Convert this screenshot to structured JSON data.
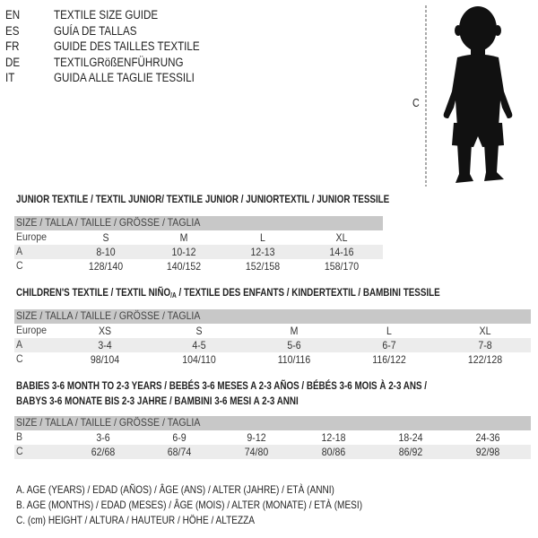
{
  "languages": [
    {
      "code": "EN",
      "text": "TEXTILE SIZE GUIDE"
    },
    {
      "code": "ES",
      "text": "GUÍA DE TALLAS"
    },
    {
      "code": "FR",
      "text": "GUIDE DES TAILLES TEXTILE"
    },
    {
      "code": "DE",
      "text": "TEXTILGRößENFÜHRUNG"
    },
    {
      "code": "IT",
      "text": "GUIDA ALLE TAGLIE TESSILI"
    }
  ],
  "figure": {
    "label": "C"
  },
  "size_header": "SIZE / TALLA / TAILLE / GRÖSSE / TAGLIA",
  "junior": {
    "title": "JUNIOR TEXTILE / TEXTIL JUNIOR/ TEXTILE JUNIOR / JUNIORTEXTIL / JUNIOR TESSILE",
    "rows": [
      {
        "label": "Europe",
        "values": [
          "S",
          "M",
          "L",
          "XL"
        ]
      },
      {
        "label": "A",
        "values": [
          "8-10",
          "10-12",
          "12-13",
          "14-16"
        ]
      },
      {
        "label": "C",
        "values": [
          "128/140",
          "140/152",
          "152/158",
          "158/170"
        ]
      }
    ]
  },
  "children": {
    "title_main": "CHILDREN'S TEXTILE / TEXTIL NIÑO",
    "title_sub": "/A",
    "title_rest": " / TEXTILE DES ENFANTS / KINDERTEXTIL / BAMBINI TESSILE",
    "rows": [
      {
        "label": "Europe",
        "values": [
          "XS",
          "S",
          "M",
          "L",
          "XL"
        ]
      },
      {
        "label": "A",
        "values": [
          "3-4",
          "4-5",
          "5-6",
          "6-7",
          "7-8"
        ]
      },
      {
        "label": "C",
        "values": [
          "98/104",
          "104/110",
          "110/116",
          "116/122",
          "122/128"
        ]
      }
    ]
  },
  "babies": {
    "title_line1": "BABIES 3-6 MONTH TO 2-3 YEARS / BEBÉS 3-6 MESES A 2-3 AÑOS / BÉBÉS 3-6 MOIS À 2-3 ANS /",
    "title_line2": "BABYS 3-6 MONATE BIS 2-3 JAHRE / BAMBINI 3-6 MESI A 2-3 ANNI",
    "rows": [
      {
        "label": "B",
        "values": [
          "3-6",
          "6-9",
          "9-12",
          "12-18",
          "18-24",
          "24-36"
        ]
      },
      {
        "label": "C",
        "values": [
          "62/68",
          "68/74",
          "74/80",
          "80/86",
          "86/92",
          "92/98"
        ]
      }
    ]
  },
  "legend": [
    "A. AGE (YEARS) / EDAD (AÑOS) / ÂGE (ANS) / ALTER (JAHRE) / ETÀ (ANNI)",
    "B. AGE (MONTHS) / EDAD (MESES) / ÂGE (MOIS) / ALTER (MONATE) / ETÀ (MESI)",
    "C. (cm) HEIGHT / ALTURA / HAUTEUR / HÖHE / ALTEZZA"
  ]
}
